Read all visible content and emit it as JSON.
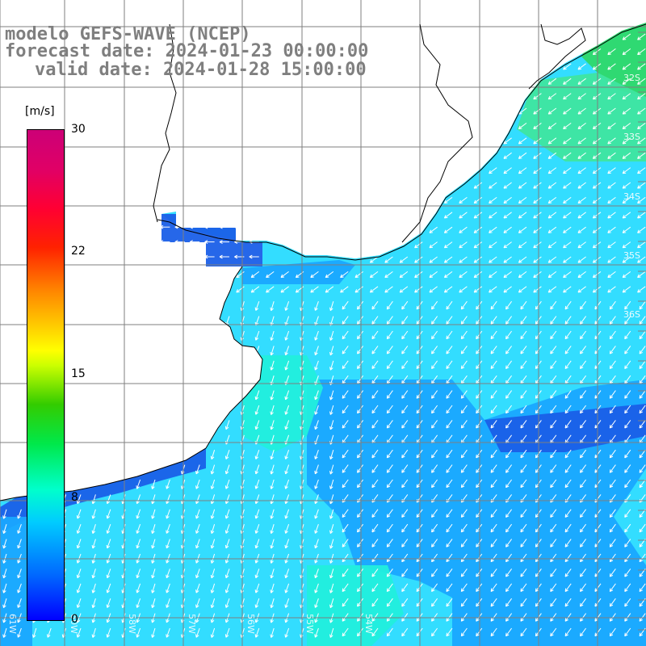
{
  "title": {
    "line1": "modelo GEFS-WAVE (NCEP)",
    "line2": "forecast date: 2024-01-23 00:00:00",
    "line3": "valid date: 2024-01-28 15:00:00"
  },
  "colorbar": {
    "unit": "[m/s]",
    "ticks": [
      "30",
      "22",
      "15",
      "8",
      "0"
    ],
    "min": 0,
    "max": 30,
    "colors": [
      "#0000ff",
      "#00ccff",
      "#00e84a",
      "#ffff00",
      "#ff8800",
      "#ff0033",
      "#cc0077"
    ]
  },
  "map": {
    "lat_labels": [
      "32S",
      "33S",
      "34S",
      "35S",
      "36S"
    ],
    "lon_labels": [
      "61W",
      "60W",
      "58W",
      "57W",
      "56W",
      "55W",
      "54W"
    ],
    "colors": {
      "land": "#ffffff",
      "coast": "#000000",
      "grid": "#7f7f7f",
      "vector": "#ffffff",
      "sea_main": "#33ddff",
      "sea_light": "#22eedd",
      "sea_blue": "#1aa6ff",
      "sea_dark": "#1a5fe8"
    }
  }
}
